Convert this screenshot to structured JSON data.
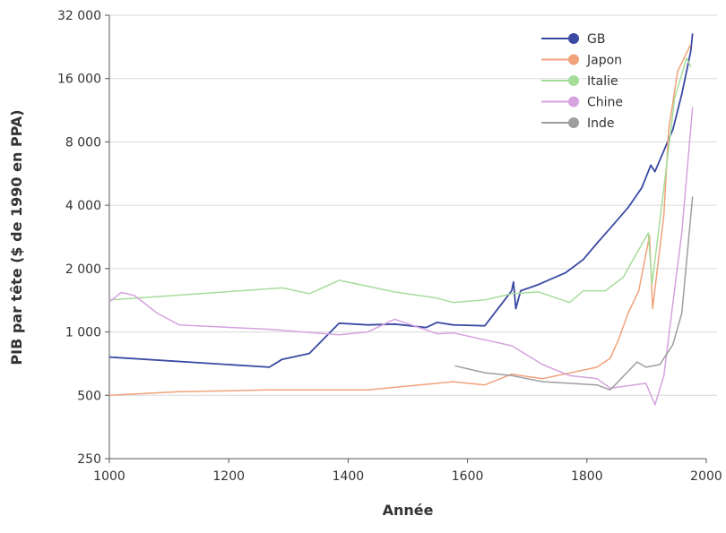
{
  "chart_data": {
    "type": "line",
    "title": "",
    "xlabel": "Année",
    "ylabel": "PIB par tête ($ de 1990 en PPA)",
    "xlim": [
      1000,
      2000
    ],
    "ylim": [
      250,
      32000
    ],
    "yscale": "log2",
    "grid": "horizontal",
    "legend_position": "top-right",
    "x_ticks": [
      1000,
      1200,
      1400,
      1600,
      1800,
      2000
    ],
    "x_tick_labels": [
      "1000",
      "1200",
      "1400",
      "1600",
      "1800",
      "2000"
    ],
    "y_ticks": [
      250,
      500,
      1000,
      2000,
      4000,
      8000,
      16000,
      32000
    ],
    "y_tick_labels": [
      "250",
      "500",
      "1 000",
      "2 000",
      "4 000",
      "8 000",
      "16 000",
      "32 000"
    ],
    "series": [
      {
        "name": "GB",
        "color": "#3a4aa3",
        "points": [
          [
            1000,
            760
          ],
          [
            1268,
            680
          ],
          [
            1289,
            740
          ],
          [
            1335,
            790
          ],
          [
            1385,
            1100
          ],
          [
            1433,
            1080
          ],
          [
            1478,
            1090
          ],
          [
            1531,
            1050
          ],
          [
            1549,
            1110
          ],
          [
            1576,
            1080
          ],
          [
            1629,
            1070
          ],
          [
            1674,
            1570
          ],
          [
            1677,
            1730
          ],
          [
            1681,
            1290
          ],
          [
            1689,
            1570
          ],
          [
            1719,
            1680
          ],
          [
            1764,
            1910
          ],
          [
            1794,
            2210
          ],
          [
            1817,
            2640
          ],
          [
            1839,
            3110
          ],
          [
            1869,
            3900
          ],
          [
            1892,
            4850
          ],
          [
            1907,
            6200
          ],
          [
            1914,
            5780
          ],
          [
            1944,
            9150
          ],
          [
            1959,
            13500
          ],
          [
            1974,
            21600
          ],
          [
            1977,
            26200
          ]
        ]
      },
      {
        "name": "Japon",
        "color": "#f0a27a",
        "points": [
          [
            1000,
            500
          ],
          [
            1117,
            520
          ],
          [
            1268,
            530
          ],
          [
            1433,
            530
          ],
          [
            1576,
            580
          ],
          [
            1629,
            560
          ],
          [
            1674,
            630
          ],
          [
            1726,
            600
          ],
          [
            1817,
            680
          ],
          [
            1839,
            750
          ],
          [
            1853,
            920
          ],
          [
            1869,
            1230
          ],
          [
            1887,
            1570
          ],
          [
            1905,
            2880
          ],
          [
            1910,
            1290
          ],
          [
            1929,
            3600
          ],
          [
            1937,
            9150
          ],
          [
            1952,
            17300
          ],
          [
            1974,
            23300
          ]
        ]
      },
      {
        "name": "Italie",
        "color": "#a6dd9b",
        "points": [
          [
            1000,
            1420
          ],
          [
            1290,
            1620
          ],
          [
            1335,
            1520
          ],
          [
            1385,
            1760
          ],
          [
            1478,
            1550
          ],
          [
            1549,
            1450
          ],
          [
            1576,
            1380
          ],
          [
            1629,
            1420
          ],
          [
            1674,
            1520
          ],
          [
            1719,
            1550
          ],
          [
            1771,
            1380
          ],
          [
            1794,
            1570
          ],
          [
            1831,
            1570
          ],
          [
            1861,
            1820
          ],
          [
            1876,
            2170
          ],
          [
            1903,
            2960
          ],
          [
            1909,
            1680
          ],
          [
            1929,
            4840
          ],
          [
            1947,
            12900
          ],
          [
            1967,
            20000
          ],
          [
            1974,
            18200
          ]
        ]
      },
      {
        "name": "Chine",
        "color": "#d6a2e0",
        "points": [
          [
            1000,
            1390
          ],
          [
            1020,
            1540
          ],
          [
            1042,
            1490
          ],
          [
            1080,
            1230
          ],
          [
            1117,
            1080
          ],
          [
            1268,
            1030
          ],
          [
            1385,
            970
          ],
          [
            1433,
            1000
          ],
          [
            1478,
            1150
          ],
          [
            1549,
            980
          ],
          [
            1576,
            990
          ],
          [
            1674,
            860
          ],
          [
            1726,
            700
          ],
          [
            1771,
            620
          ],
          [
            1817,
            600
          ],
          [
            1839,
            540
          ],
          [
            1899,
            570
          ],
          [
            1914,
            450
          ],
          [
            1929,
            620
          ],
          [
            1941,
            1170
          ],
          [
            1959,
            2970
          ],
          [
            1977,
            11700
          ]
        ]
      },
      {
        "name": "Inde",
        "color": "#9e9e9e",
        "points": [
          [
            1579,
            690
          ],
          [
            1629,
            640
          ],
          [
            1674,
            620
          ],
          [
            1726,
            580
          ],
          [
            1817,
            560
          ],
          [
            1839,
            530
          ],
          [
            1869,
            650
          ],
          [
            1884,
            720
          ],
          [
            1899,
            680
          ],
          [
            1922,
            700
          ],
          [
            1944,
            870
          ],
          [
            1959,
            1230
          ],
          [
            1977,
            4400
          ]
        ]
      }
    ]
  }
}
